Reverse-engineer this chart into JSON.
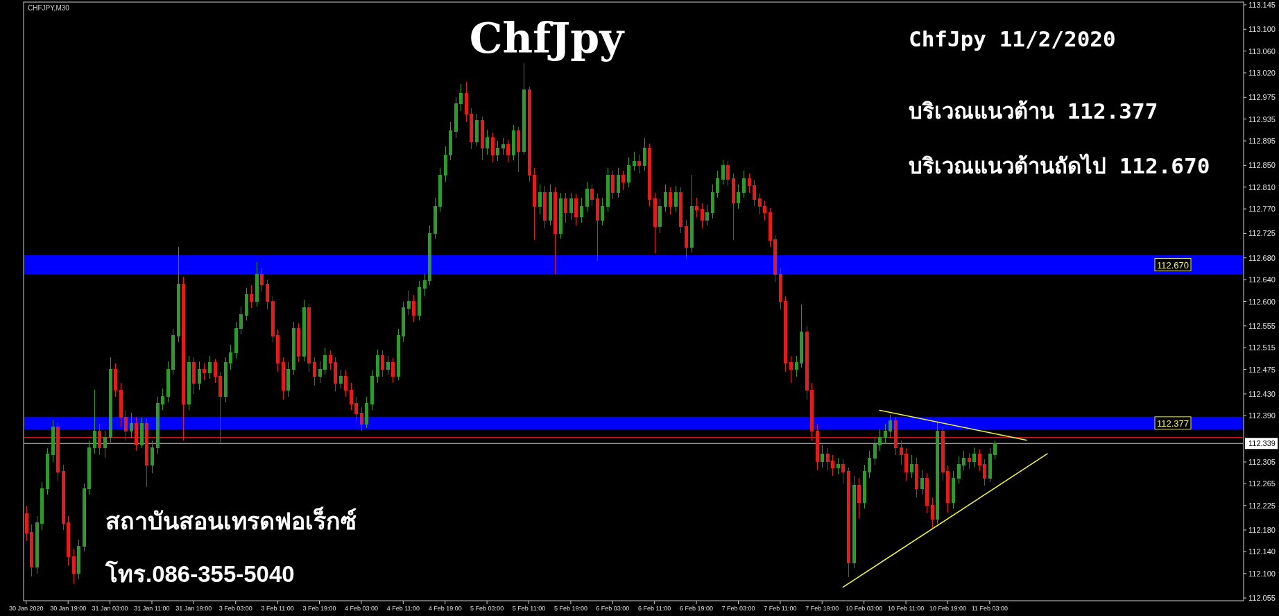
{
  "chart_data": {
    "type": "candlestick",
    "title": "ChfJpy",
    "annotations": [
      "CHFJPY,M30",
      "ChfJpy 11/2/2020",
      "บริเวณแนวต้าน 112.377",
      "บริเวณแนวต้านถัดไป 112.670",
      "สถาบันสอนเทรดฟอเร็กซ์",
      "โทร.086-355-5040"
    ],
    "categories": [
      "30 Jan 2020",
      null,
      null,
      null,
      null,
      null,
      null,
      null,
      "30 Jan 19:00",
      null,
      null,
      null,
      null,
      null,
      null,
      null,
      "31 Jan 03:00",
      null,
      null,
      null,
      null,
      null,
      null,
      null,
      "31 Jan 11:00",
      null,
      null,
      null,
      null,
      null,
      null,
      null,
      "31 Jan 19:00",
      null,
      null,
      null,
      null,
      null,
      null,
      null,
      "3 Feb 03:00",
      null,
      null,
      null,
      null,
      null,
      null,
      null,
      "3 Feb 11:00",
      null,
      null,
      null,
      null,
      null,
      null,
      null,
      "3 Feb 19:00",
      null,
      null,
      null,
      null,
      null,
      null,
      null,
      "4 Feb 03:00",
      null,
      null,
      null,
      null,
      null,
      null,
      null,
      "4 Feb 11:00",
      null,
      null,
      null,
      null,
      null,
      null,
      null,
      "4 Feb 19:00",
      null,
      null,
      null,
      null,
      null,
      null,
      null,
      "5 Feb 03:00",
      null,
      null,
      null,
      null,
      null,
      null,
      null,
      "5 Feb 11:00",
      null,
      null,
      null,
      null,
      null,
      null,
      null,
      "5 Feb 19:00",
      null,
      null,
      null,
      null,
      null,
      null,
      null,
      "6 Feb 03:00",
      null,
      null,
      null,
      null,
      null,
      null,
      null,
      "6 Feb 11:00",
      null,
      null,
      null,
      null,
      null,
      null,
      null,
      "6 Feb 19:00",
      null,
      null,
      null,
      null,
      null,
      null,
      null,
      "7 Feb 03:00",
      null,
      null,
      null,
      null,
      null,
      null,
      null,
      "7 Feb 11:00",
      null,
      null,
      null,
      null,
      null,
      null,
      null,
      "7 Feb 19:00",
      null,
      null,
      null,
      null,
      null,
      null,
      null,
      "10 Feb 03:00",
      null,
      null,
      null,
      null,
      null,
      null,
      null,
      "10 Feb 11:00",
      null,
      null,
      null,
      null,
      null,
      null,
      null,
      "10 Feb 19:00",
      null,
      null,
      null,
      null,
      null,
      null,
      null,
      "11 Feb 03:00",
      null,
      null,
      null,
      null,
      null,
      null,
      null,
      null,
      null,
      null,
      null,
      null,
      null,
      null,
      null,
      null,
      null,
      null,
      null,
      null,
      null,
      null,
      null,
      null,
      null,
      null,
      null,
      null,
      null,
      null,
      null,
      null,
      null,
      null,
      null,
      null,
      null,
      null,
      null,
      null,
      null,
      null,
      null,
      null,
      null,
      null,
      null,
      null
    ],
    "ohlc": [
      [
        112.21,
        112.225,
        112.16,
        112.175
      ],
      [
        112.175,
        112.19,
        112.095,
        112.112
      ],
      [
        112.112,
        112.205,
        112.1,
        112.193
      ],
      [
        112.193,
        112.268,
        112.18,
        112.256
      ],
      [
        112.256,
        112.33,
        112.245,
        112.319
      ],
      [
        112.319,
        112.381,
        112.305,
        112.369
      ],
      [
        112.369,
        112.378,
        112.27,
        112.287
      ],
      [
        112.287,
        112.3,
        112.18,
        112.193
      ],
      [
        112.193,
        112.205,
        112.115,
        112.131
      ],
      [
        112.131,
        112.145,
        112.081,
        112.1
      ],
      [
        112.1,
        112.162,
        112.09,
        112.15
      ],
      [
        112.15,
        112.265,
        112.14,
        112.256
      ],
      [
        112.256,
        112.345,
        112.245,
        112.331
      ],
      [
        112.331,
        112.437,
        112.32,
        112.362
      ],
      [
        112.362,
        112.375,
        112.318,
        112.331
      ],
      [
        112.331,
        112.362,
        112.312,
        112.35
      ],
      [
        112.35,
        112.497,
        112.34,
        112.475
      ],
      [
        112.475,
        112.486,
        112.425,
        112.437
      ],
      [
        112.437,
        112.45,
        112.37,
        112.387
      ],
      [
        112.387,
        112.4,
        112.345,
        112.362
      ],
      [
        112.362,
        112.395,
        112.35,
        112.375
      ],
      [
        112.375,
        112.388,
        112.325,
        112.337
      ],
      [
        112.337,
        112.387,
        112.33,
        112.375
      ],
      [
        112.375,
        112.385,
        112.259,
        112.3
      ],
      [
        112.3,
        112.345,
        112.285,
        112.331
      ],
      [
        112.331,
        112.425,
        112.32,
        112.412
      ],
      [
        112.412,
        112.44,
        112.4,
        112.425
      ],
      [
        112.425,
        112.49,
        112.415,
        112.475
      ],
      [
        112.475,
        112.55,
        112.465,
        112.537
      ],
      [
        112.537,
        112.7,
        112.525,
        112.631
      ],
      [
        112.631,
        112.645,
        112.344,
        112.412
      ],
      [
        112.412,
        112.5,
        112.4,
        112.487
      ],
      [
        112.487,
        112.498,
        112.43,
        112.45
      ],
      [
        112.45,
        112.49,
        112.438,
        112.475
      ],
      [
        112.475,
        112.487,
        112.455,
        112.469
      ],
      [
        112.469,
        112.5,
        112.458,
        112.487
      ],
      [
        112.487,
        112.495,
        112.45,
        112.462
      ],
      [
        112.462,
        112.47,
        112.34,
        112.425
      ],
      [
        112.425,
        112.498,
        112.415,
        112.487
      ],
      [
        112.487,
        112.52,
        112.475,
        112.506
      ],
      [
        112.506,
        112.562,
        112.495,
        112.55
      ],
      [
        112.55,
        112.59,
        112.54,
        112.575
      ],
      [
        112.575,
        112.625,
        112.565,
        112.613
      ],
      [
        112.613,
        112.63,
        112.588,
        112.6
      ],
      [
        112.6,
        112.672,
        112.59,
        112.65
      ],
      [
        112.65,
        112.66,
        112.618,
        112.631
      ],
      [
        112.631,
        112.64,
        112.585,
        112.6
      ],
      [
        112.6,
        112.61,
        112.525,
        112.537
      ],
      [
        112.537,
        112.548,
        112.47,
        112.487
      ],
      [
        112.487,
        112.498,
        112.42,
        112.437
      ],
      [
        112.437,
        112.488,
        112.425,
        112.475
      ],
      [
        112.475,
        112.562,
        112.465,
        112.55
      ],
      [
        112.55,
        112.56,
        112.488,
        112.5
      ],
      [
        112.5,
        112.603,
        112.49,
        112.588
      ],
      [
        112.588,
        112.595,
        112.47,
        112.487
      ],
      [
        112.487,
        112.498,
        112.445,
        112.462
      ],
      [
        112.462,
        112.49,
        112.45,
        112.475
      ],
      [
        112.475,
        112.515,
        112.465,
        112.5
      ],
      [
        112.5,
        112.51,
        112.475,
        112.487
      ],
      [
        112.487,
        112.498,
        112.435,
        112.45
      ],
      [
        112.45,
        112.475,
        112.44,
        112.462
      ],
      [
        112.462,
        112.474,
        112.425,
        112.437
      ],
      [
        112.437,
        112.45,
        112.4,
        112.412
      ],
      [
        112.412,
        112.425,
        112.38,
        112.394
      ],
      [
        112.394,
        112.405,
        112.362,
        112.375
      ],
      [
        112.375,
        112.425,
        112.368,
        112.412
      ],
      [
        112.412,
        112.475,
        112.4,
        112.462
      ],
      [
        112.462,
        112.512,
        112.45,
        112.5
      ],
      [
        112.5,
        112.51,
        112.462,
        112.475
      ],
      [
        112.475,
        112.5,
        112.465,
        112.487
      ],
      [
        112.487,
        112.496,
        112.45,
        112.462
      ],
      [
        112.462,
        112.55,
        112.455,
        112.537
      ],
      [
        112.537,
        112.6,
        112.525,
        112.588
      ],
      [
        112.588,
        112.62,
        112.575,
        112.6
      ],
      [
        112.6,
        112.612,
        112.562,
        112.575
      ],
      [
        112.575,
        112.638,
        112.565,
        112.625
      ],
      [
        112.625,
        112.65,
        112.61,
        112.638
      ],
      [
        112.638,
        112.74,
        112.63,
        112.725
      ],
      [
        112.725,
        112.79,
        112.715,
        112.775
      ],
      [
        112.775,
        112.845,
        112.765,
        112.832
      ],
      [
        112.832,
        112.885,
        112.82,
        112.869
      ],
      [
        112.869,
        112.93,
        112.86,
        112.913
      ],
      [
        112.913,
        112.975,
        112.9,
        112.963
      ],
      [
        112.963,
        113.0,
        112.95,
        112.982
      ],
      [
        112.982,
        113.004,
        112.93,
        112.944
      ],
      [
        112.944,
        112.955,
        112.88,
        112.894
      ],
      [
        112.894,
        112.945,
        112.885,
        112.932
      ],
      [
        112.932,
        112.94,
        112.86,
        112.882
      ],
      [
        112.882,
        112.915,
        112.87,
        112.9
      ],
      [
        112.9,
        112.91,
        112.855,
        112.869
      ],
      [
        112.869,
        112.895,
        112.858,
        112.882
      ],
      [
        112.882,
        112.9,
        112.87,
        112.888
      ],
      [
        112.888,
        112.898,
        112.855,
        112.869
      ],
      [
        112.869,
        112.925,
        112.86,
        112.913
      ],
      [
        112.913,
        112.92,
        112.838,
        112.875
      ],
      [
        112.875,
        113.038,
        112.87,
        112.988
      ],
      [
        112.988,
        112.995,
        112.82,
        112.832
      ],
      [
        112.832,
        112.845,
        112.713,
        112.775
      ],
      [
        112.775,
        112.815,
        112.76,
        112.8
      ],
      [
        112.8,
        112.812,
        112.735,
        112.75
      ],
      [
        112.75,
        112.815,
        112.74,
        112.8
      ],
      [
        112.8,
        112.81,
        112.65,
        112.725
      ],
      [
        112.725,
        112.8,
        112.715,
        112.788
      ],
      [
        112.788,
        112.8,
        112.745,
        112.763
      ],
      [
        112.763,
        112.8,
        112.75,
        112.788
      ],
      [
        112.788,
        112.798,
        112.74,
        112.756
      ],
      [
        112.756,
        112.79,
        112.745,
        112.775
      ],
      [
        112.775,
        112.82,
        112.765,
        112.806
      ],
      [
        112.806,
        112.815,
        112.775,
        112.788
      ],
      [
        112.788,
        112.798,
        112.675,
        112.75
      ],
      [
        112.75,
        112.79,
        112.74,
        112.775
      ],
      [
        112.775,
        112.845,
        112.765,
        112.832
      ],
      [
        112.832,
        112.84,
        112.788,
        112.8
      ],
      [
        112.8,
        112.845,
        112.79,
        112.832
      ],
      [
        112.832,
        112.84,
        112.805,
        112.819
      ],
      [
        112.819,
        112.865,
        112.81,
        112.85
      ],
      [
        112.85,
        112.875,
        112.84,
        112.857
      ],
      [
        112.857,
        112.87,
        112.835,
        112.85
      ],
      [
        112.85,
        112.9,
        112.84,
        112.882
      ],
      [
        112.882,
        112.89,
        112.775,
        112.788
      ],
      [
        112.788,
        112.8,
        112.688,
        112.738
      ],
      [
        112.738,
        112.788,
        112.725,
        112.775
      ],
      [
        112.775,
        112.815,
        112.765,
        112.8
      ],
      [
        112.8,
        112.81,
        112.76,
        112.775
      ],
      [
        112.775,
        112.812,
        112.765,
        112.8
      ],
      [
        112.8,
        112.81,
        112.725,
        112.738
      ],
      [
        112.738,
        112.75,
        112.678,
        112.7
      ],
      [
        112.7,
        112.832,
        112.69,
        112.775
      ],
      [
        112.775,
        112.79,
        112.755,
        112.769
      ],
      [
        112.769,
        112.78,
        112.735,
        112.75
      ],
      [
        112.75,
        112.778,
        112.74,
        112.763
      ],
      [
        112.763,
        112.815,
        112.752,
        112.8
      ],
      [
        112.8,
        112.84,
        112.79,
        112.825
      ],
      [
        112.825,
        112.86,
        112.815,
        112.85
      ],
      [
        112.85,
        112.858,
        112.812,
        112.825
      ],
      [
        112.825,
        112.835,
        112.713,
        112.781
      ],
      [
        112.781,
        112.815,
        112.77,
        112.8
      ],
      [
        112.8,
        112.84,
        112.79,
        112.825
      ],
      [
        112.825,
        112.835,
        112.8,
        112.813
      ],
      [
        112.813,
        112.822,
        112.775,
        112.788
      ],
      [
        112.788,
        112.798,
        112.76,
        112.775
      ],
      [
        112.775,
        112.785,
        112.748,
        112.763
      ],
      [
        112.763,
        112.772,
        112.7,
        112.713
      ],
      [
        112.713,
        112.722,
        112.635,
        112.65
      ],
      [
        112.65,
        112.662,
        112.585,
        112.6
      ],
      [
        112.6,
        112.61,
        112.47,
        112.487
      ],
      [
        112.487,
        112.5,
        112.45,
        112.475
      ],
      [
        112.475,
        112.5,
        112.462,
        112.487
      ],
      [
        112.487,
        112.594,
        112.478,
        112.544
      ],
      [
        112.544,
        112.555,
        112.42,
        112.437
      ],
      [
        112.437,
        112.45,
        112.345,
        112.362
      ],
      [
        112.362,
        112.375,
        112.29,
        112.306
      ],
      [
        112.306,
        112.335,
        112.295,
        112.319
      ],
      [
        112.319,
        112.33,
        112.29,
        112.306
      ],
      [
        112.306,
        112.318,
        112.28,
        112.294
      ],
      [
        112.294,
        112.312,
        112.282,
        112.3
      ],
      [
        112.3,
        112.31,
        112.265,
        112.287
      ],
      [
        112.287,
        112.295,
        112.093,
        112.12
      ],
      [
        112.12,
        112.28,
        112.11,
        112.262
      ],
      [
        112.262,
        112.275,
        112.2,
        112.231
      ],
      [
        112.231,
        112.3,
        112.22,
        112.287
      ],
      [
        112.287,
        112.325,
        112.275,
        112.312
      ],
      [
        112.312,
        112.35,
        112.3,
        112.337
      ],
      [
        112.337,
        112.365,
        112.325,
        112.35
      ],
      [
        112.35,
        112.375,
        112.338,
        112.362
      ],
      [
        112.362,
        112.391,
        112.35,
        112.381
      ],
      [
        112.381,
        112.388,
        112.318,
        112.331
      ],
      [
        112.331,
        112.345,
        112.3,
        112.319
      ],
      [
        112.319,
        112.33,
        112.27,
        112.287
      ],
      [
        112.287,
        112.318,
        112.275,
        112.3
      ],
      [
        112.3,
        112.312,
        112.24,
        112.256
      ],
      [
        112.256,
        112.29,
        112.245,
        112.275
      ],
      [
        112.275,
        112.285,
        112.21,
        112.225
      ],
      [
        112.225,
        112.24,
        112.184,
        112.2
      ],
      [
        112.2,
        112.378,
        112.192,
        112.362
      ],
      [
        112.362,
        112.37,
        112.27,
        112.287
      ],
      [
        112.287,
        112.298,
        112.212,
        112.231
      ],
      [
        112.231,
        112.288,
        112.22,
        112.275
      ],
      [
        112.275,
        112.315,
        112.265,
        112.3
      ],
      [
        112.3,
        112.325,
        112.29,
        112.312
      ],
      [
        112.312,
        112.322,
        112.292,
        112.306
      ],
      [
        112.306,
        112.332,
        112.295,
        112.319
      ],
      [
        112.319,
        112.328,
        112.288,
        112.3
      ],
      [
        112.3,
        112.31,
        112.262,
        112.275
      ],
      [
        112.275,
        112.33,
        112.268,
        112.319
      ],
      [
        112.319,
        112.344,
        112.31,
        112.339
      ],
      null,
      null,
      null,
      null,
      null,
      null,
      null,
      null,
      null,
      null,
      null,
      null,
      null,
      null,
      null,
      null,
      null,
      null,
      null,
      null,
      null,
      null,
      null,
      null,
      null,
      null,
      null,
      null,
      null,
      null,
      null,
      null,
      null,
      null,
      null,
      null,
      null,
      null,
      null,
      null,
      null,
      null,
      null,
      null,
      null,
      null,
      null
    ],
    "colors": [
      "#e31b1b",
      "#e31b1b",
      "#2e9a2e",
      "#2e9a2e",
      "#2e9a2e",
      "#2e9a2e",
      "#e31b1b",
      "#e31b1b",
      "#e31b1b",
      "#e31b1b",
      "#2e9a2e",
      "#2e9a2e",
      "#2e9a2e",
      "#2e9a2e",
      "#e31b1b",
      "#2e9a2e",
      "#2e9a2e",
      "#e31b1b",
      "#e31b1b",
      "#e31b1b",
      "#2e9a2e",
      "#e31b1b",
      "#2e9a2e",
      "#e31b1b",
      "#2e9a2e",
      "#2e9a2e",
      "#2e9a2e",
      "#2e9a2e",
      "#2e9a2e",
      "#2e9a2e",
      "#e31b1b",
      "#2e9a2e",
      "#e31b1b",
      "#2e9a2e",
      "#e31b1b",
      "#2e9a2e",
      "#e31b1b",
      "#e31b1b",
      "#2e9a2e",
      "#2e9a2e",
      "#2e9a2e",
      "#2e9a2e",
      "#2e9a2e",
      "#e31b1b",
      "#2e9a2e",
      "#e31b1b",
      "#e31b1b",
      "#e31b1b",
      "#e31b1b",
      "#e31b1b",
      "#2e9a2e",
      "#2e9a2e",
      "#e31b1b",
      "#2e9a2e",
      "#e31b1b",
      "#e31b1b",
      "#2e9a2e",
      "#2e9a2e",
      "#e31b1b",
      "#e31b1b",
      "#2e9a2e",
      "#e31b1b",
      "#e31b1b",
      "#e31b1b",
      "#e31b1b",
      "#2e9a2e",
      "#2e9a2e",
      "#2e9a2e",
      "#e31b1b",
      "#2e9a2e",
      "#e31b1b",
      "#2e9a2e",
      "#2e9a2e",
      "#2e9a2e",
      "#e31b1b",
      "#2e9a2e",
      "#2e9a2e",
      "#2e9a2e",
      "#2e9a2e",
      "#2e9a2e",
      "#2e9a2e",
      "#2e9a2e",
      "#2e9a2e",
      "#2e9a2e",
      "#e31b1b",
      "#e31b1b",
      "#2e9a2e",
      "#e31b1b",
      "#2e9a2e",
      "#e31b1b",
      "#2e9a2e",
      "#2e9a2e",
      "#e31b1b",
      "#2e9a2e",
      "#e31b1b",
      "#2e9a2e",
      "#e31b1b",
      "#e31b1b",
      "#2e9a2e",
      "#e31b1b",
      "#2e9a2e",
      "#e31b1b",
      "#2e9a2e",
      "#e31b1b",
      "#2e9a2e",
      "#e31b1b",
      "#2e9a2e",
      "#2e9a2e",
      "#e31b1b",
      "#e31b1b",
      "#2e9a2e",
      "#2e9a2e",
      "#e31b1b",
      "#2e9a2e",
      "#e31b1b",
      "#2e9a2e",
      "#2e9a2e",
      "#e31b1b",
      "#2e9a2e",
      "#e31b1b",
      "#e31b1b",
      "#2e9a2e",
      "#2e9a2e",
      "#e31b1b",
      "#2e9a2e",
      "#e31b1b",
      "#e31b1b",
      "#2e9a2e",
      "#e31b1b",
      "#e31b1b",
      "#2e9a2e",
      "#2e9a2e",
      "#2e9a2e",
      "#2e9a2e",
      "#e31b1b",
      "#e31b1b",
      "#2e9a2e",
      "#2e9a2e",
      "#e31b1b",
      "#e31b1b",
      "#e31b1b",
      "#e31b1b",
      "#e31b1b",
      "#e31b1b",
      "#e31b1b",
      "#e31b1b",
      "#e31b1b",
      "#2e9a2e",
      "#2e9a2e",
      "#e31b1b",
      "#e31b1b",
      "#e31b1b",
      "#2e9a2e",
      "#e31b1b",
      "#e31b1b",
      "#2e9a2e",
      "#e31b1b",
      "#e31b1b",
      "#2e9a2e",
      "#e31b1b",
      "#2e9a2e",
      "#2e9a2e",
      "#2e9a2e",
      "#2e9a2e",
      "#2e9a2e",
      "#2e9a2e",
      "#e31b1b",
      "#e31b1b",
      "#e31b1b",
      "#2e9a2e",
      "#e31b1b",
      "#2e9a2e",
      "#e31b1b",
      "#e31b1b",
      "#2e9a2e",
      "#e31b1b",
      "#e31b1b",
      "#2e9a2e",
      "#2e9a2e",
      "#2e9a2e",
      "#e31b1b",
      "#2e9a2e",
      "#e31b1b",
      "#e31b1b",
      "#2e9a2e",
      "#2e9a2e",
      null,
      null,
      null,
      null,
      null,
      null,
      null,
      null,
      null,
      null,
      null,
      null,
      null,
      null,
      null,
      null,
      null,
      null,
      null,
      null,
      null,
      null,
      null,
      null,
      null,
      null,
      null,
      null,
      null,
      null,
      null,
      null,
      null,
      null,
      null,
      null,
      null,
      null,
      null,
      null,
      null,
      null,
      null,
      null,
      null,
      null,
      null
    ],
    "series": [
      {
        "type": "line",
        "color": "#f2f24a",
        "values": [
          null,
          null,
          null,
          null,
          null,
          null,
          null,
          null,
          null,
          null,
          null,
          null,
          null,
          null,
          null,
          null,
          null,
          null,
          null,
          null,
          null,
          null,
          null,
          null,
          null,
          null,
          null,
          null,
          null,
          null,
          null,
          null,
          null,
          null,
          null,
          null,
          null,
          null,
          null,
          null,
          null,
          null,
          null,
          null,
          null,
          null,
          null,
          null,
          null,
          null,
          null,
          null,
          null,
          null,
          null,
          null,
          null,
          null,
          null,
          null,
          null,
          null,
          null,
          null,
          null,
          null,
          null,
          null,
          null,
          null,
          null,
          null,
          null,
          null,
          null,
          null,
          null,
          null,
          null,
          null,
          null,
          null,
          null,
          null,
          null,
          null,
          null,
          null,
          null,
          null,
          null,
          null,
          null,
          null,
          null,
          null,
          null,
          null,
          null,
          null,
          null,
          null,
          null,
          null,
          null,
          null,
          null,
          null,
          null,
          null,
          null,
          null,
          null,
          null,
          null,
          null,
          null,
          null,
          null,
          null,
          null,
          null,
          null,
          null,
          null,
          null,
          null,
          null,
          null,
          null,
          null,
          null,
          null,
          null,
          null,
          null,
          null,
          null,
          null,
          null,
          null,
          null,
          null,
          null,
          null,
          null,
          null,
          null,
          null,
          null,
          null,
          null,
          null,
          null,
          null,
          null,
          null,
          null,
          null,
          null,
          null,
          null,
          null,
          112.4,
          null,
          null,
          null,
          null,
          null,
          null,
          null,
          null,
          null,
          null,
          null,
          null,
          null,
          null,
          null,
          null,
          null,
          null,
          null,
          null,
          null,
          null,
          null,
          null,
          null,
          null,
          null,
          112.345,
          null,
          null,
          null,
          null,
          null,
          null,
          null,
          null,
          null,
          null,
          null,
          null,
          null,
          null,
          null,
          null,
          null,
          null,
          null,
          null,
          null,
          null,
          null,
          null,
          null,
          null,
          null,
          null,
          null,
          null,
          null,
          null,
          null,
          null,
          null,
          null,
          null,
          null,
          null,
          null,
          null
        ]
      },
      {
        "type": "line",
        "color": "#f2f24a",
        "values": [
          null,
          null,
          null,
          null,
          null,
          null,
          null,
          null,
          null,
          null,
          null,
          null,
          null,
          null,
          null,
          null,
          null,
          null,
          null,
          null,
          null,
          null,
          null,
          null,
          null,
          null,
          null,
          null,
          null,
          null,
          null,
          null,
          null,
          null,
          null,
          null,
          null,
          null,
          null,
          null,
          null,
          null,
          null,
          null,
          null,
          null,
          null,
          null,
          null,
          null,
          null,
          null,
          null,
          null,
          null,
          null,
          null,
          null,
          null,
          null,
          null,
          null,
          null,
          null,
          null,
          null,
          null,
          null,
          null,
          null,
          null,
          null,
          null,
          null,
          null,
          null,
          null,
          null,
          null,
          null,
          null,
          null,
          null,
          null,
          null,
          null,
          null,
          null,
          null,
          null,
          null,
          null,
          null,
          null,
          null,
          null,
          null,
          null,
          null,
          null,
          null,
          null,
          null,
          null,
          null,
          null,
          null,
          null,
          null,
          null,
          null,
          null,
          null,
          null,
          null,
          null,
          null,
          null,
          null,
          null,
          null,
          null,
          null,
          null,
          null,
          null,
          null,
          null,
          null,
          null,
          null,
          null,
          null,
          null,
          null,
          null,
          null,
          null,
          null,
          null,
          null,
          null,
          null,
          null,
          null,
          null,
          null,
          null,
          null,
          null,
          null,
          null,
          null,
          null,
          null,
          null,
          112.075,
          null,
          null,
          null,
          null,
          null,
          null,
          null,
          null,
          null,
          null,
          null,
          null,
          null,
          null,
          null,
          null,
          null,
          null,
          null,
          null,
          null,
          null,
          null,
          null,
          null,
          null,
          null,
          null,
          null,
          null,
          null,
          null,
          null,
          null,
          null,
          null,
          null,
          null,
          112.32,
          null,
          null,
          null,
          null,
          null,
          null,
          null,
          null,
          null,
          null,
          null,
          null,
          null,
          null,
          null,
          null,
          null,
          null,
          null,
          null,
          null,
          null,
          null,
          null,
          null,
          null,
          null,
          null,
          null,
          null,
          null,
          null,
          null,
          null,
          null,
          null,
          null
        ]
      }
    ],
    "ylim": [
      112.05,
      113.15
    ],
    "yticks": [
      113.145,
      {
        "value": 113.1,
        "label": "113.100"
      },
      {
        "value": 113.06,
        "label": "113.060"
      },
      {
        "value": 113.02,
        "label": "113.020"
      },
      112.975,
      112.935,
      112.895,
      {
        "value": 112.85,
        "label": "112.850"
      },
      {
        "value": 112.81,
        "label": "112.810"
      },
      {
        "value": 112.77,
        "label": "112.770"
      },
      112.725,
      {
        "value": 112.68,
        "label": "112.680"
      },
      {
        "value": 112.64,
        "label": "112.640"
      },
      {
        "value": 112.6,
        "label": "112.600"
      },
      112.555,
      112.515,
      112.475,
      {
        "value": 112.43,
        "label": "112.430"
      },
      {
        "value": 112.39,
        "label": "112.390"
      },
      112.305,
      112.265,
      112.225,
      {
        "value": 112.18,
        "label": "112.180"
      },
      {
        "value": 112.14,
        "label": "112.140"
      },
      {
        "value": 112.1,
        "label": "112.100"
      },
      112.055
    ],
    "bands": [
      {
        "axis": "y",
        "from": 112.65,
        "to": 112.685,
        "label": "112.670",
        "color": "#0000ff"
      },
      {
        "axis": "y",
        "from": 112.365,
        "to": 112.388,
        "label": "112.377",
        "color": "#0000ff"
      }
    ],
    "ref_lines": [
      {
        "axis": "y",
        "value": 112.35,
        "color": "#d01818"
      },
      {
        "axis": "y",
        "value": 112.339,
        "label": "112.339",
        "color": "#c8c8c8"
      }
    ]
  }
}
